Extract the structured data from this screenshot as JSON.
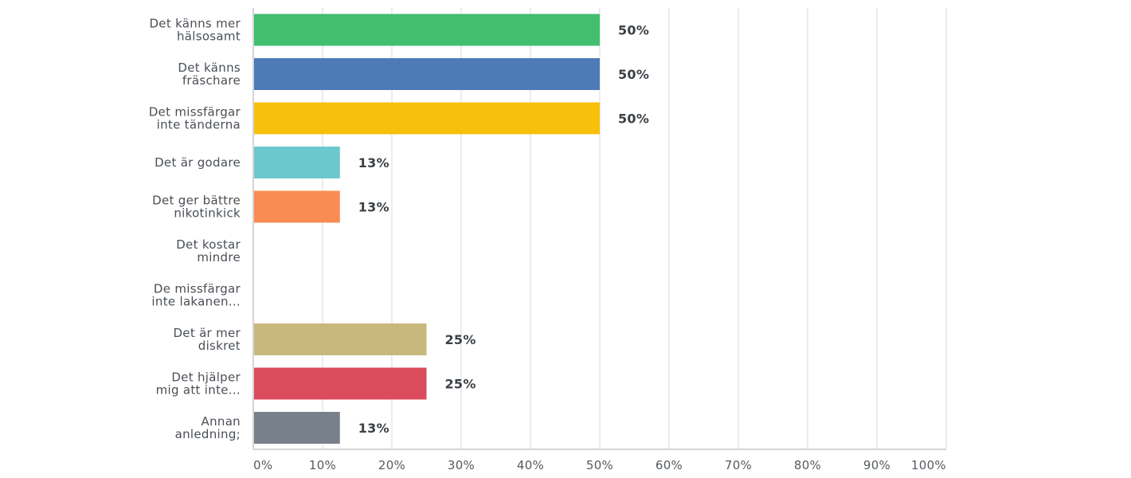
{
  "chart_data": {
    "type": "bar",
    "orientation": "horizontal",
    "categories": [
      [
        "Det känns mer",
        "hälsosamt"
      ],
      [
        "Det känns",
        "fräschare"
      ],
      [
        "Det missfärgar",
        "inte tänderna"
      ],
      [
        "Det är godare"
      ],
      [
        "Det ger bättre",
        "nikotinkick"
      ],
      [
        "Det kostar",
        "mindre"
      ],
      [
        "De missfärgar",
        "inte lakanen..."
      ],
      [
        "Det är mer",
        "diskret"
      ],
      [
        "Det hjälper",
        "mig att inte..."
      ],
      [
        "Annan",
        "anledning;"
      ]
    ],
    "values": [
      50,
      50,
      50,
      12.5,
      12.5,
      0,
      0,
      25,
      25,
      12.5
    ],
    "value_labels": [
      "50%",
      "50%",
      "50%",
      "13%",
      "13%",
      "",
      "",
      "25%",
      "25%",
      "13%"
    ],
    "colors": [
      "#41bf6f",
      "#4e7ab8",
      "#f7c00c",
      "#6bc8cc",
      "#f88c52",
      "#9b8cc4",
      "#a0a0a0",
      "#c8b87c",
      "#da4c5b",
      "#78818a"
    ],
    "xlim": [
      0,
      100
    ],
    "xticks": [
      "0%",
      "10%",
      "20%",
      "30%",
      "40%",
      "50%",
      "60%",
      "70%",
      "80%",
      "90%",
      "100%"
    ],
    "grid": true,
    "title": "",
    "xlabel": "",
    "ylabel": ""
  }
}
